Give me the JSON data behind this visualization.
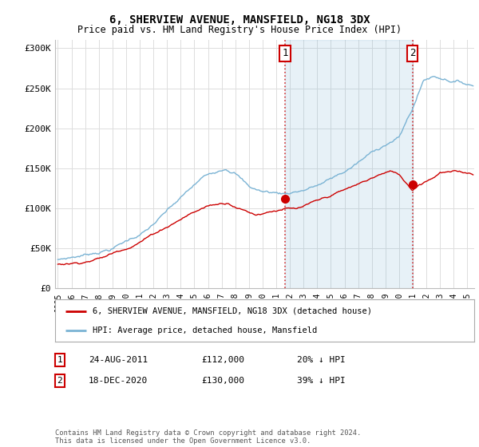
{
  "title": "6, SHERVIEW AVENUE, MANSFIELD, NG18 3DX",
  "subtitle": "Price paid vs. HM Land Registry's House Price Index (HPI)",
  "ylabel_ticks": [
    "£0",
    "£50K",
    "£100K",
    "£150K",
    "£200K",
    "£250K",
    "£300K"
  ],
  "ytick_vals": [
    0,
    50000,
    100000,
    150000,
    200000,
    250000,
    300000
  ],
  "ylim": [
    0,
    310000
  ],
  "xlim_start": 1994.8,
  "xlim_end": 2025.5,
  "hpi_color": "#7ab3d4",
  "price_color": "#cc0000",
  "shade_color": "#ddeeff",
  "marker1_x": 2011.65,
  "marker1_y": 112000,
  "marker2_x": 2020.97,
  "marker2_y": 130000,
  "vline1_x": 2011.65,
  "vline2_x": 2020.97,
  "legend_line1": "6, SHERVIEW AVENUE, MANSFIELD, NG18 3DX (detached house)",
  "legend_line2": "HPI: Average price, detached house, Mansfield",
  "annotation1_num": "1",
  "annotation1_date": "24-AUG-2011",
  "annotation1_price": "£112,000",
  "annotation1_hpi": "20% ↓ HPI",
  "annotation2_num": "2",
  "annotation2_date": "18-DEC-2020",
  "annotation2_price": "£130,000",
  "annotation2_hpi": "39% ↓ HPI",
  "footer": "Contains HM Land Registry data © Crown copyright and database right 2024.\nThis data is licensed under the Open Government Licence v3.0.",
  "bg_color": "#ffffff",
  "grid_color": "#dddddd"
}
